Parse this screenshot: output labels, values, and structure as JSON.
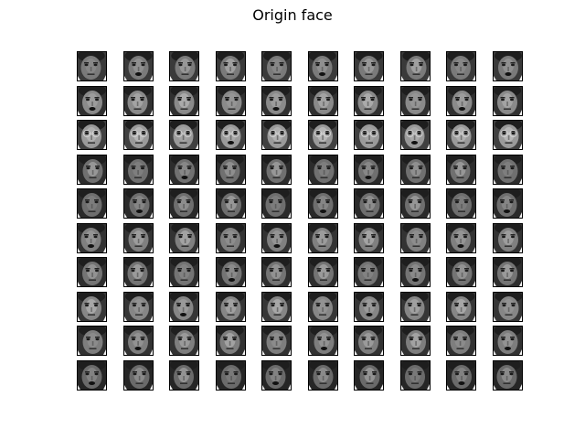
{
  "title": "Origin face",
  "grid": {
    "rows": 10,
    "cols": 10,
    "subjects": [
      {
        "tone": "#7a7a7a",
        "dark": "#3a3a3a",
        "glasses": false
      },
      {
        "tone": "#8a8a8a",
        "dark": "#303030",
        "glasses": false
      },
      {
        "tone": "#9a9a9a",
        "dark": "#404040",
        "glasses": true
      },
      {
        "tone": "#707070",
        "dark": "#2c2c2c",
        "glasses": false
      },
      {
        "tone": "#6e6e6e",
        "dark": "#2a2a2a",
        "glasses": false
      },
      {
        "tone": "#808080",
        "dark": "#333333",
        "glasses": false
      },
      {
        "tone": "#747474",
        "dark": "#2e2e2e",
        "glasses": false
      },
      {
        "tone": "#868686",
        "dark": "#363636",
        "glasses": false
      },
      {
        "tone": "#7e7e7e",
        "dark": "#323232",
        "glasses": false
      },
      {
        "tone": "#6a6a6a",
        "dark": "#262626",
        "glasses": false
      }
    ]
  }
}
